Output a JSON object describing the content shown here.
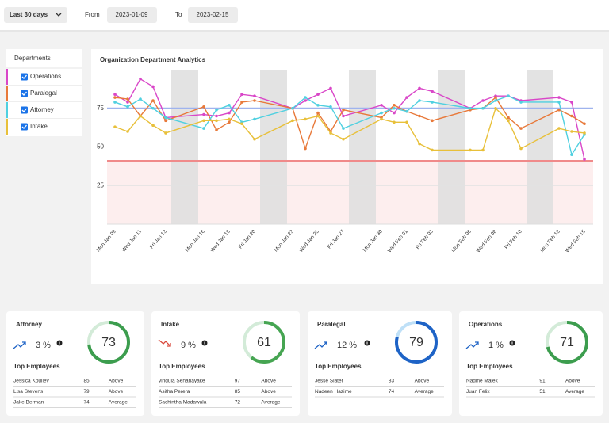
{
  "filters": {
    "range": "Last 30 days",
    "from_label": "From",
    "from": "2023-01-09",
    "to_label": "To",
    "to": "2023-02-15"
  },
  "chart_data": {
    "type": "line",
    "title": "Organization Department Analytics",
    "legend_title": "Departments",
    "categories": [
      "Mon Jan 09",
      null,
      "Wed Jan 11",
      null,
      "Fri Jan 13",
      "Mon Jan 16",
      null,
      "Wed Jan 18",
      null,
      "Fri Jan 20",
      "Mon Jan 23",
      null,
      "Wed Jan 25",
      null,
      "Fri Jan 27",
      "Mon Jan 30",
      null,
      "Wed Feb 01",
      null,
      "Fri Feb 03",
      "Mon Feb 06",
      null,
      "Wed Feb 08",
      null,
      "Fri Feb 10",
      "Mon Feb 13",
      null,
      "Wed Feb 15"
    ],
    "series": [
      {
        "name": "Operations",
        "color": "#d946c8",
        "values": [
          84,
          79,
          94,
          89,
          69,
          71,
          70,
          72,
          84,
          83,
          75,
          80,
          84,
          88,
          70,
          77,
          72,
          82,
          88,
          86,
          75,
          80,
          83,
          83,
          80,
          82,
          79,
          42
        ]
      },
      {
        "name": "Paralegal",
        "color": "#e8793a",
        "values": [
          82,
          81,
          70,
          80,
          67,
          76,
          61,
          66,
          79,
          80,
          75,
          49,
          72,
          60,
          74,
          69,
          77,
          73,
          70,
          67,
          74,
          75,
          82,
          69,
          62,
          74,
          70,
          65
        ]
      },
      {
        "name": "Attorney",
        "color": "#4fd0e0",
        "values": [
          79,
          76,
          81,
          75,
          69,
          62,
          74,
          77,
          66,
          68,
          75,
          82,
          77,
          76,
          62,
          72,
          75,
          73,
          80,
          79,
          75,
          75,
          80,
          83,
          79,
          79,
          45,
          58
        ]
      },
      {
        "name": "Intake",
        "color": "#e8c03a",
        "values": [
          63,
          60,
          70,
          64,
          59,
          67,
          67,
          68,
          65,
          55,
          67,
          68,
          70,
          59,
          55,
          68,
          66,
          66,
          52,
          48,
          48,
          48,
          75,
          67,
          49,
          62,
          60,
          59
        ]
      }
    ],
    "ylim": [
      0,
      100
    ],
    "yticks": [
      25,
      50,
      75
    ],
    "grid": true,
    "reference_lines": [
      {
        "value": 75,
        "color": "#9fb3ee"
      },
      {
        "value": 41,
        "color": "#f08a8a",
        "fill_below": "#fdeeee"
      }
    ],
    "weekend_color": "#dedede"
  },
  "cards": [
    {
      "title": "Attorney",
      "change": "3 %",
      "trend": "up",
      "score": 73,
      "ring_color": "#3c9d4e",
      "track_color": "#d3ebd8",
      "employees_title": "Top Employees",
      "employees": [
        [
          "Jessica Kouliev",
          "85",
          "Above"
        ],
        [
          "Lisa Stevens",
          "79",
          "Above"
        ],
        [
          "Jake Berman",
          "74",
          "Average"
        ]
      ]
    },
    {
      "title": "Intake",
      "change": "9 %",
      "trend": "down",
      "score": 61,
      "ring_color": "#46a552",
      "track_color": "#d3ebd8",
      "employees_title": "Top Employees",
      "employees": [
        [
          "vindula Senanayake",
          "97",
          "Above"
        ],
        [
          "Asitha Perera",
          "85",
          "Above"
        ],
        [
          "Sachintha Madawala",
          "72",
          "Average"
        ]
      ]
    },
    {
      "title": "Paralegal",
      "change": "12 %",
      "trend": "up",
      "score": 79,
      "ring_color": "#1e63c6",
      "track_color": "#bfe0f7",
      "employees_title": "Top Employees",
      "employees": [
        [
          "Jesse Slater",
          "83",
          "Above"
        ],
        [
          "Nadeen Hazime",
          "74",
          "Average"
        ]
      ]
    },
    {
      "title": "Operations",
      "change": "1 %",
      "trend": "up",
      "score": 71,
      "ring_color": "#3c9d4e",
      "track_color": "#d3ebd8",
      "employees_title": "Top Employees",
      "employees": [
        [
          "Nadine Malek",
          "91",
          "Above"
        ],
        [
          "Juan Felix",
          "51",
          "Average"
        ]
      ]
    }
  ]
}
